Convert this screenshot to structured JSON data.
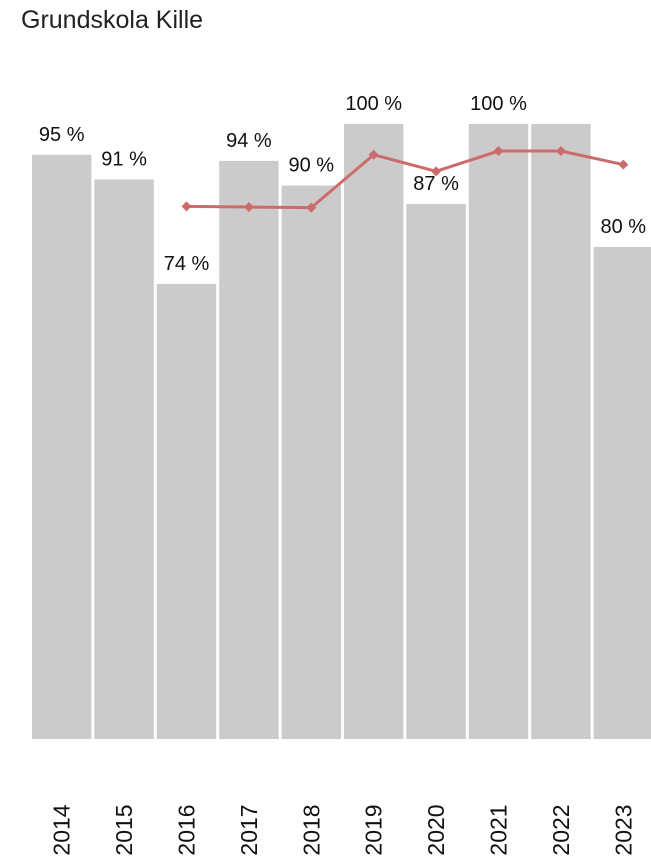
{
  "chart_data": {
    "type": "bar",
    "title": "Grundskola Kille",
    "xlabel": "",
    "ylabel": "",
    "ylim": [
      0,
      100
    ],
    "grid": false,
    "categories": [
      "2014",
      "2015",
      "2016",
      "2017",
      "2018",
      "2019",
      "2020",
      "2021",
      "2022",
      "2023"
    ],
    "series": [
      {
        "type": "bar",
        "values": [
          95,
          91,
          74,
          94,
          90,
          100,
          87,
          100,
          100,
          80
        ],
        "labels": [
          "95 %",
          "91 %",
          "74 %",
          "94 %",
          "90 %",
          "100 %",
          "87 %",
          "100 %",
          "",
          "80 %"
        ]
      },
      {
        "type": "line",
        "values": [
          null,
          null,
          86.6,
          86.5,
          86.4,
          95.0,
          92.3,
          95.6,
          95.6,
          93.4
        ]
      }
    ],
    "colors": {
      "bar": "#cbcbcb",
      "line": "#cc6b6b"
    }
  }
}
